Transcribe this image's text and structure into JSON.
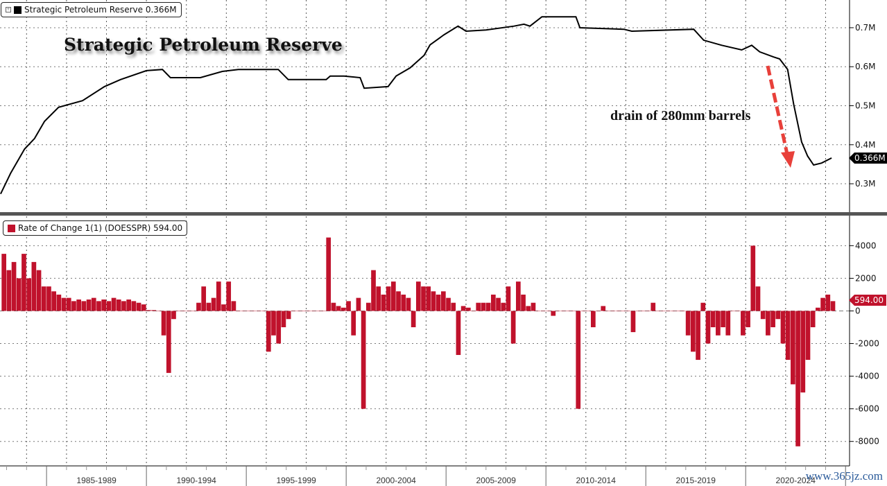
{
  "colors": {
    "line": "#000000",
    "bars": "#c0122c",
    "arrow": "#e8403a",
    "watermark": "#2a5a9a",
    "divider": "#555555"
  },
  "top_legend": {
    "label": "Strategic Petroleum Reserve 0.366M",
    "icon": "expand-box-icon"
  },
  "bottom_legend": {
    "label": "Rate of Change 1(1) (DOESSPR) 594.00"
  },
  "title": "Strategic Petroleum Reserve",
  "annotation": "drain of 280mm barrels",
  "watermark": "www.365jz.com",
  "last_value_top": "0.366M",
  "last_value_bottom": "594.00",
  "chart_data": [
    {
      "type": "line",
      "series_name": "Strategic Petroleum Reserve",
      "yunit": "M",
      "ylim": [
        0.229,
        0.771
      ],
      "xlim": [
        1982.67,
        2025.2
      ],
      "yticks": [
        {
          "v": 0.3,
          "label": "0.3M"
        },
        {
          "v": 0.4,
          "label": "0.4M"
        },
        {
          "v": 0.5,
          "label": "0.5M"
        },
        {
          "v": 0.6,
          "label": "0.6M"
        },
        {
          "v": 0.7,
          "label": "0.7M"
        }
      ],
      "grid": true,
      "legend": "top-left",
      "points": [
        [
          1982.7,
          0.274
        ],
        [
          1983.2,
          0.327
        ],
        [
          1983.9,
          0.389
        ],
        [
          1984.4,
          0.416
        ],
        [
          1984.9,
          0.46
        ],
        [
          1985.6,
          0.496
        ],
        [
          1986.8,
          0.513
        ],
        [
          1987.9,
          0.549
        ],
        [
          1988.7,
          0.567
        ],
        [
          1990.0,
          0.59
        ],
        [
          1990.8,
          0.593
        ],
        [
          1991.2,
          0.572
        ],
        [
          1992.7,
          0.572
        ],
        [
          1993.8,
          0.588
        ],
        [
          1994.6,
          0.593
        ],
        [
          1996.6,
          0.593
        ],
        [
          1997.1,
          0.567
        ],
        [
          1999.0,
          0.567
        ],
        [
          1999.2,
          0.576
        ],
        [
          1999.9,
          0.576
        ],
        [
          2000.7,
          0.572
        ],
        [
          2000.9,
          0.545
        ],
        [
          2002.1,
          0.549
        ],
        [
          2002.5,
          0.576
        ],
        [
          2003.2,
          0.597
        ],
        [
          2003.9,
          0.629
        ],
        [
          2004.2,
          0.656
        ],
        [
          2004.9,
          0.682
        ],
        [
          2005.6,
          0.704
        ],
        [
          2006.0,
          0.691
        ],
        [
          2007.0,
          0.694
        ],
        [
          2008.4,
          0.704
        ],
        [
          2008.9,
          0.709
        ],
        [
          2009.2,
          0.704
        ],
        [
          2009.8,
          0.728
        ],
        [
          2011.5,
          0.728
        ],
        [
          2011.7,
          0.7
        ],
        [
          2013.9,
          0.696
        ],
        [
          2014.3,
          0.691
        ],
        [
          2017.4,
          0.696
        ],
        [
          2017.9,
          0.668
        ],
        [
          2018.8,
          0.655
        ],
        [
          2019.8,
          0.643
        ],
        [
          2020.3,
          0.655
        ],
        [
          2020.7,
          0.638
        ],
        [
          2021.4,
          0.625
        ],
        [
          2021.7,
          0.62
        ],
        [
          2022.1,
          0.593
        ],
        [
          2022.4,
          0.504
        ],
        [
          2022.8,
          0.407
        ],
        [
          2023.1,
          0.371
        ],
        [
          2023.4,
          0.348
        ],
        [
          2023.8,
          0.353
        ],
        [
          2024.3,
          0.366
        ]
      ]
    },
    {
      "type": "bar",
      "series_name": "Rate of Change 1(1) (DOESSPR)",
      "ylim": [
        -9500,
        5800
      ],
      "yticks": [
        4000,
        2000,
        0,
        -2000,
        -4000,
        -6000,
        -8000
      ],
      "grid": true,
      "legend": "top-left",
      "start": 1982.75,
      "step": 0.25,
      "values": [
        3500,
        2500,
        3000,
        2000,
        3500,
        2000,
        3000,
        2500,
        1500,
        1500,
        1200,
        1000,
        800,
        800,
        600,
        700,
        600,
        700,
        800,
        600,
        700,
        600,
        800,
        700,
        600,
        700,
        600,
        500,
        400,
        50,
        50,
        0,
        -1500,
        -3800,
        -500,
        0,
        0,
        0,
        0,
        500,
        1500,
        500,
        800,
        1800,
        400,
        1800,
        600,
        0,
        0,
        0,
        0,
        0,
        0,
        -2500,
        -1500,
        -2000,
        -1000,
        -500,
        0,
        0,
        0,
        0,
        0,
        0,
        0,
        4500,
        500,
        300,
        200,
        600,
        -1500,
        800,
        -6000,
        500,
        2500,
        1500,
        1000,
        1500,
        1800,
        1200,
        1000,
        800,
        -1000,
        1800,
        1500,
        1500,
        1200,
        1000,
        1200,
        800,
        500,
        -2700,
        300,
        200,
        0,
        500,
        500,
        500,
        1000,
        800,
        500,
        1500,
        -2000,
        1800,
        1000,
        300,
        500,
        0,
        0,
        0,
        -300,
        0,
        0,
        0,
        0,
        -6000,
        0,
        0,
        -1000,
        0,
        300,
        0,
        0,
        0,
        0,
        0,
        -1300,
        0,
        0,
        0,
        500,
        0,
        0,
        0,
        0,
        0,
        0,
        -1500,
        -2500,
        -3000,
        500,
        -2000,
        -1000,
        -1500,
        -1000,
        -1500,
        0,
        0,
        -1500,
        -1000,
        4000,
        1500,
        -500,
        -1500,
        -1000,
        -500,
        -2000,
        -3000,
        -4500,
        -8300,
        -5000,
        -3000,
        -1000,
        200,
        800,
        1000,
        600
      ]
    }
  ],
  "x_axis": {
    "periods": [
      "1985-1989",
      "1990-1994",
      "1995-1999",
      "2000-2004",
      "2005-2009",
      "2010-2014",
      "2015-2019",
      "2020-2024"
    ]
  }
}
